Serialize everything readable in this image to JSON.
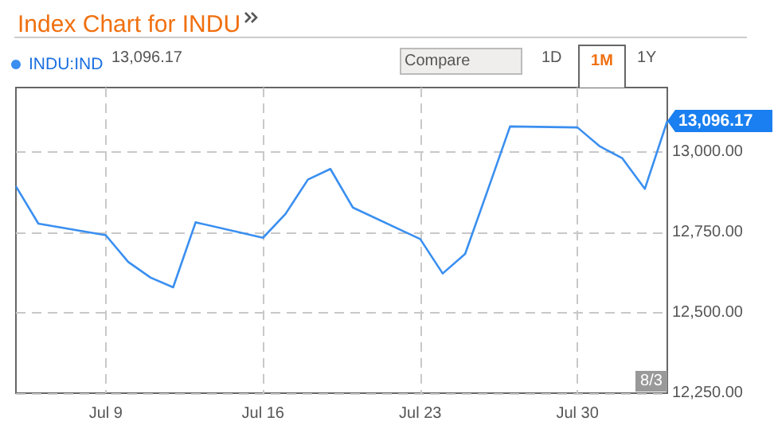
{
  "chart_data": {
    "type": "line",
    "title": "Index Chart for INDU",
    "x": [
      "--07-05",
      "--07-06",
      "--07-09",
      "--07-10",
      "--07-11",
      "--07-12",
      "--07-13",
      "--07-16",
      "--07-17",
      "--07-18",
      "--07-19",
      "--07-20",
      "--07-23",
      "--07-24",
      "--07-25",
      "--07-26",
      "--07-27",
      "--07-30",
      "--07-31",
      "--08-01",
      "--08-02",
      "--08-03"
    ],
    "series": [
      {
        "name": "INDU:IND",
        "color": "#3a8ff0",
        "values": [
          12893,
          12777,
          12741,
          12658,
          12609,
          12579,
          12781,
          12733,
          12807,
          12914,
          12947,
          12827,
          12729,
          12622,
          12683,
          12880,
          13079,
          13076,
          13017,
          12980,
          12885,
          13096.17
        ]
      }
    ],
    "xlim": [
      "--07-05",
      "--08-03"
    ],
    "xticks": [
      {
        "value": "--07-09",
        "label": "Jul 9"
      },
      {
        "value": "--07-16",
        "label": "Jul 16"
      },
      {
        "value": "--07-23",
        "label": "Jul 23"
      },
      {
        "value": "--07-30",
        "label": "Jul 30"
      }
    ],
    "ylim": [
      12250,
      13200
    ],
    "yticks": [
      {
        "value": 12250,
        "label": "12,250.00"
      },
      {
        "value": 12500,
        "label": "12,500.00"
      },
      {
        "value": 12750,
        "label": "12,750.00"
      },
      {
        "value": 13000,
        "label": "13,000.00"
      }
    ],
    "annotations": [
      "13,096.17",
      "Compare",
      "1D",
      "1M",
      "1Y",
      {
        "text": "13,096.17",
        "x": "--08-03",
        "y": 13096.17
      },
      "8/3"
    ],
    "grid": true,
    "legend": "top left",
    "marker": "none",
    "line_style": "solid"
  }
}
